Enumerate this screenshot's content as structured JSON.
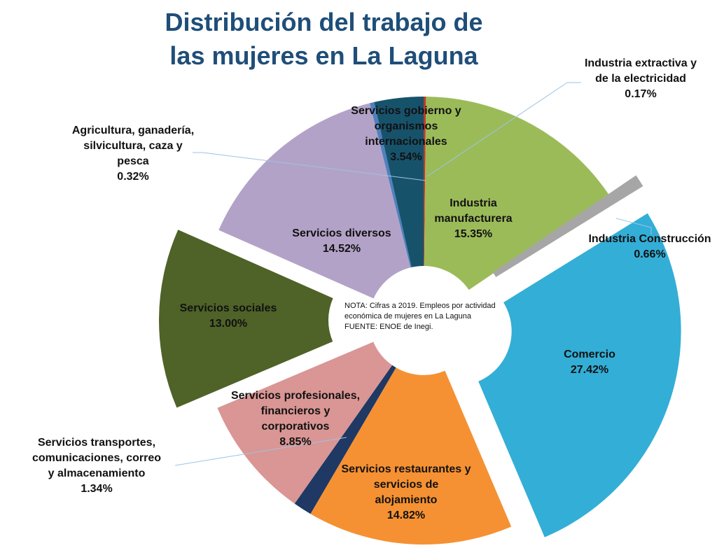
{
  "title_line1": "Distribución del trabajo de",
  "title_line2": "las mujeres en La Laguna",
  "note": {
    "line1": "NOTA: Cifras a 2019. Empleos por actividad",
    "line2": "económica de mujeres en La Laguna",
    "line3": "FUENTE: ENOE de Inegi."
  },
  "chart_data": {
    "type": "pie",
    "title": "Distribución del trabajo de las mujeres en La Laguna",
    "unit": "%",
    "slices": [
      {
        "name": "Industria extractiva y de la electricidad",
        "value": 0.17,
        "label": "0.17%",
        "color": "#C0392B"
      },
      {
        "name": "Industria manufacturera",
        "value": 15.35,
        "label": "15.35%",
        "color": "#9BBB59"
      },
      {
        "name": "Industria Construcción",
        "value": 0.66,
        "label": "0.66%",
        "color": "#A6A6A6"
      },
      {
        "name": "Comercio",
        "value": 27.42,
        "label": "27.42%",
        "color": "#33AED6"
      },
      {
        "name": "Servicios restaurantes y servicios de alojamiento",
        "value": 14.82,
        "label": "14.82%",
        "color": "#F59132"
      },
      {
        "name": "Servicios transportes, comunicaciones, correo y almacenamiento",
        "value": 1.34,
        "label": "1.34%",
        "color": "#1F3864"
      },
      {
        "name": "Servicios profesionales, financieros y corporativos",
        "value": 8.85,
        "label": "8.85%",
        "color": "#D99694"
      },
      {
        "name": "Servicios sociales",
        "value": 13.0,
        "label": "13.00%",
        "color": "#4F6228"
      },
      {
        "name": "Servicios diversos",
        "value": 14.52,
        "label": "14.52%",
        "color": "#B3A2C7"
      },
      {
        "name": "Agricultura, ganadería, silvicultura, caza y pesca",
        "value": 0.32,
        "label": "0.32%",
        "color": "#4F81BD"
      },
      {
        "name": "Servicios gobierno y organismos internacionales",
        "value": 3.54,
        "label": "3.54%",
        "color": "#17526B"
      }
    ],
    "label_lines": {
      "extractiva": [
        "Industria extractiva y",
        "de la electricidad"
      ],
      "manufacturera": [
        "Industria",
        "manufacturera"
      ],
      "construccion": [
        "Industria Construcción"
      ],
      "comercio": [
        "Comercio"
      ],
      "restaurantes": [
        "Servicios restaurantes y",
        "servicios de",
        "alojamiento"
      ],
      "transportes": [
        "Servicios transportes,",
        "comunicaciones, correo",
        "y almacenamiento"
      ],
      "profesionales": [
        "Servicios profesionales,",
        "financieros y",
        "corporativos"
      ],
      "sociales": [
        "Servicios sociales"
      ],
      "diversos": [
        "Servicios diversos"
      ],
      "agricultura": [
        "Agricultura, ganadería,",
        "silvicultura, caza y",
        "pesca"
      ],
      "gobierno": [
        "Servicios gobierno y",
        "organismos",
        "internacionales"
      ]
    }
  }
}
